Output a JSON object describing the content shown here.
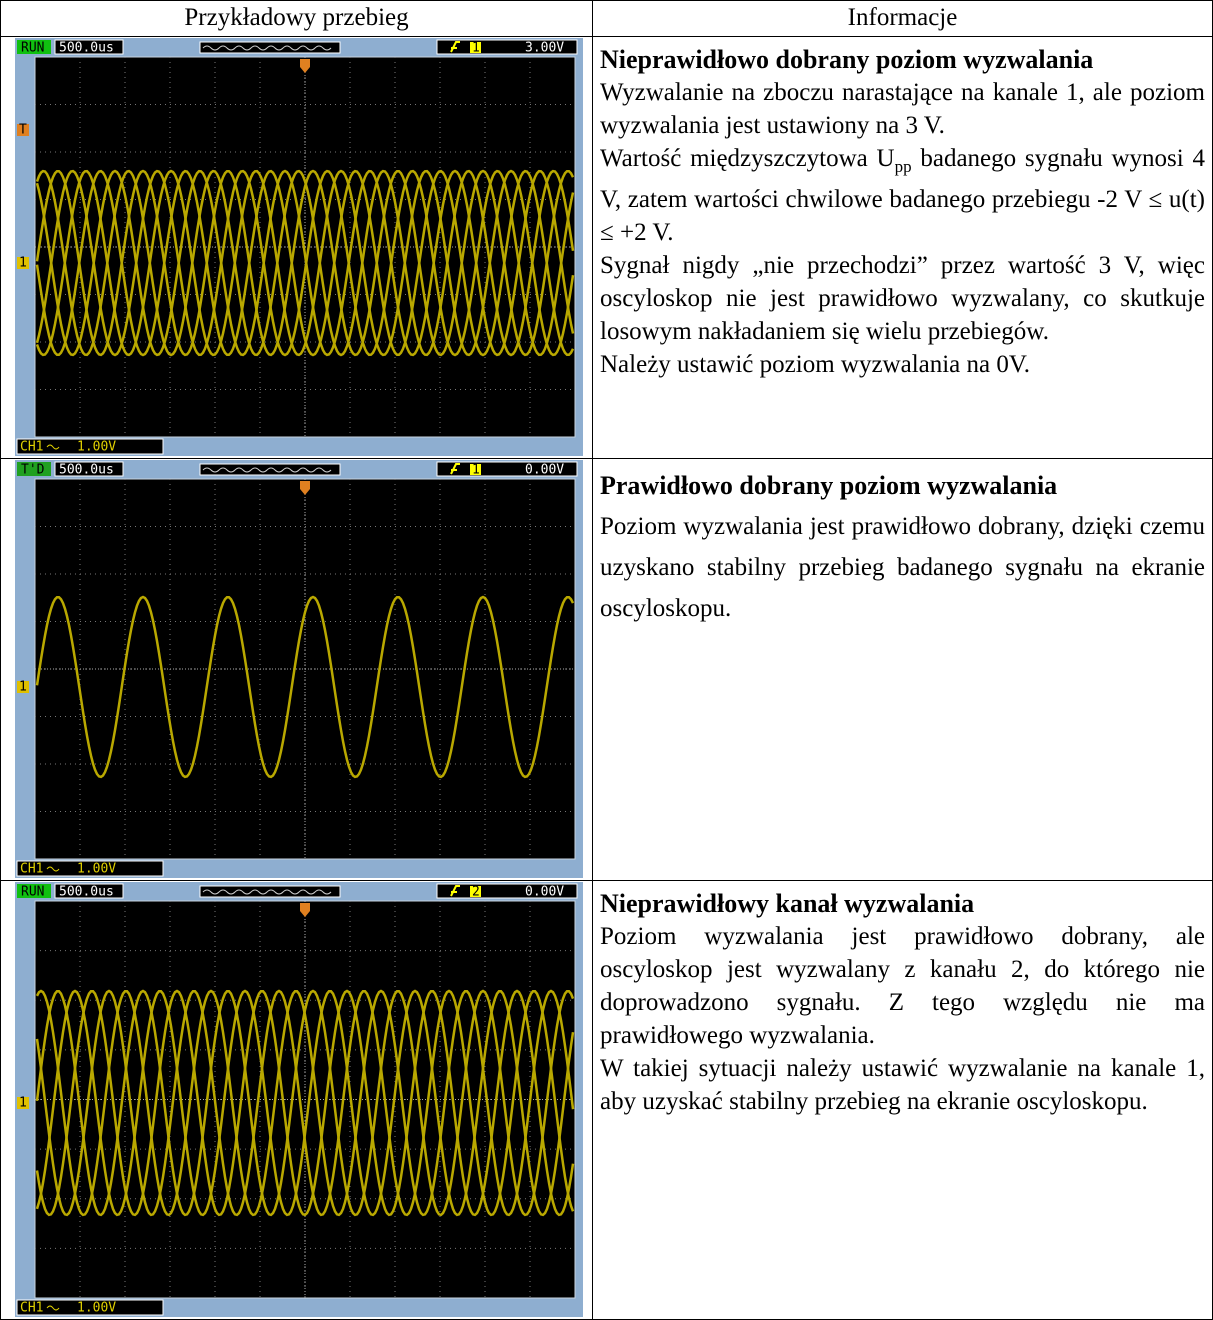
{
  "header": {
    "col1": "Przykładowy przebieg",
    "col2": "Informacje"
  },
  "rows": [
    {
      "scope": {
        "mode": "RUN",
        "timebase": "500.0us",
        "trigger_channel": "1",
        "trigger_level": "3.00V",
        "trigger_marker": "T",
        "channel_marker": "1",
        "channel": "CH1",
        "volts": "1.00V"
      },
      "title": "Nieprawidłowo dobrany poziom wyzwalania",
      "paragraphs": [
        "Wyzwalanie na zboczu narastające na kanale 1, ale poziom wyzwalania jest ustawiony na 3 V.",
        {
          "text": "Wartość międzyszczytowa U",
          "sub": "pp",
          "rest": " badanego sygnału wynosi 4 V, zatem wartości chwilowe badanego przebiegu -2 V ≤ u(t) ≤ +2 V."
        },
        "Sygnał nigdy „nie przechodzi” przez wartość 3 V, więc oscyloskop nie jest prawidłowo wyzwalany, co skutkuje losowym nakładaniem się wielu przebiegów.",
        "Należy ustawić poziom wyzwalania na 0V."
      ]
    },
    {
      "scope": {
        "mode": "T'D",
        "timebase": "500.0us",
        "trigger_channel": "1",
        "trigger_level": "0.00V",
        "channel_marker": "1",
        "channel": "CH1",
        "volts": "1.00V"
      },
      "title": "Prawidłowo dobrany poziom wyzwalania",
      "paragraphs": [
        "Poziom wyzwalania jest prawidłowo dobrany, dzięki czemu uzyskano stabilny przebieg badanego sygnału na ekranie oscyloskopu."
      ]
    },
    {
      "scope": {
        "mode": "RUN",
        "timebase": "500.0us",
        "trigger_channel": "2",
        "trigger_level": "0.00V",
        "channel_marker": "1",
        "channel": "CH1",
        "volts": "1.00V"
      },
      "title": "Nieprawidłowy kanał wyzwalania",
      "paragraphs": [
        "Poziom wyzwalania jest prawidłowo dobrany, ale oscyloskop jest wyzwalany z kanału 2, do którego nie doprowadzono sygnału. Z tego względu nie ma prawidłowego wyzwalania.",
        "W takiej sytuacji należy ustawić wyzwalanie na kanale 1, aby uzyskać stabilny przebieg na ekranie oscyloskopu."
      ]
    }
  ]
}
